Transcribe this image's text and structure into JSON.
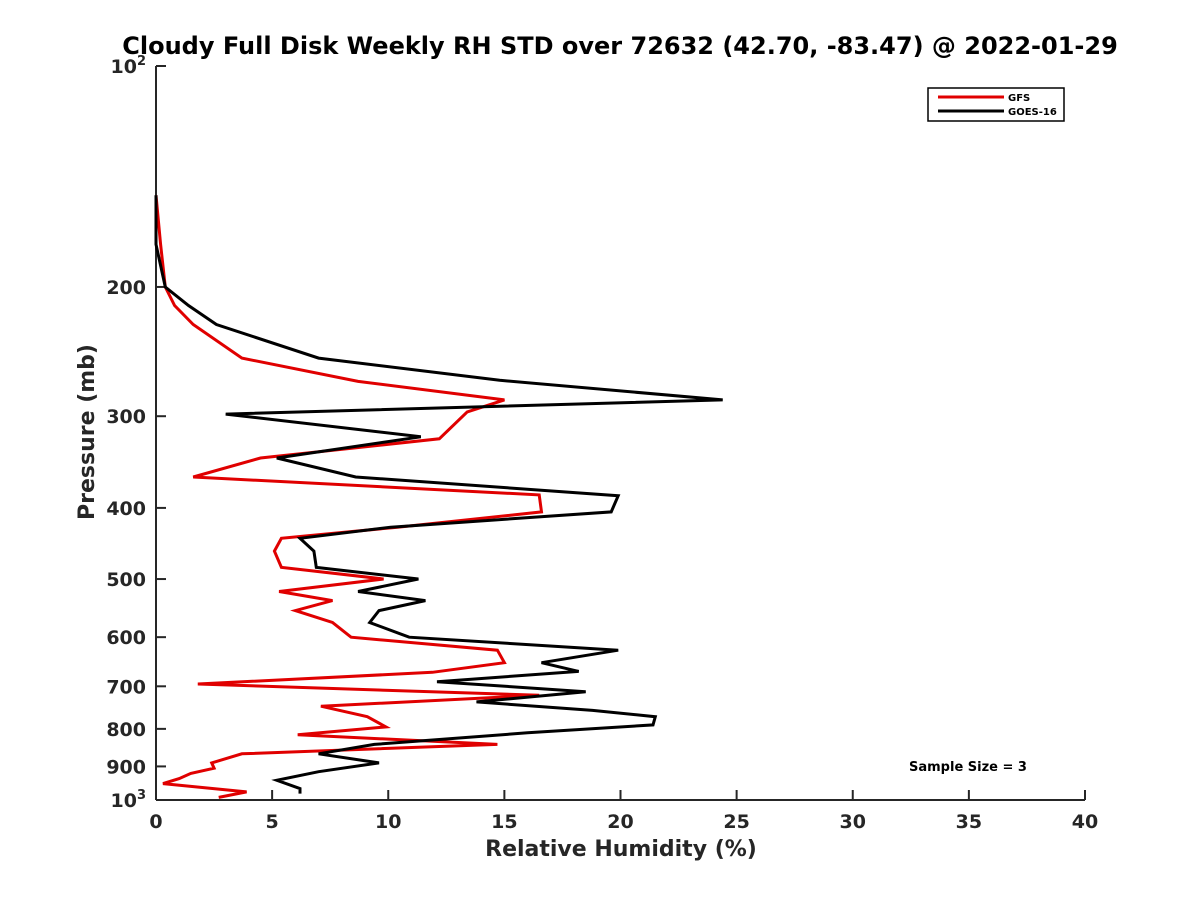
{
  "chart_data": {
    "type": "line",
    "title": "Cloudy Full Disk Weekly RH STD over 72632 (42.70, -83.47) @ 2022-01-29",
    "xlabel": "Relative Humidity (%)",
    "ylabel": "Pressure (mb)",
    "xlim": [
      0,
      40
    ],
    "ylim": [
      100,
      1000
    ],
    "yscale": "log",
    "y_reversed": true,
    "grid": false,
    "legend_position": "top-right",
    "x_ticks": [
      "0",
      "5",
      "10",
      "15",
      "20",
      "25",
      "30",
      "35",
      "40"
    ],
    "y_ticks": [
      {
        "value": 100,
        "base": "10",
        "exp": "2"
      },
      {
        "value": 200,
        "label": "200"
      },
      {
        "value": 300,
        "label": "300"
      },
      {
        "value": 400,
        "label": "400"
      },
      {
        "value": 500,
        "label": "500"
      },
      {
        "value": 600,
        "label": "600"
      },
      {
        "value": 700,
        "label": "700"
      },
      {
        "value": 800,
        "label": "800"
      },
      {
        "value": 900,
        "label": "900"
      },
      {
        "value": 1000,
        "base": "10",
        "exp": "3"
      }
    ],
    "series": [
      {
        "name": "GFS",
        "color": "#e00000",
        "points": [
          [
            0,
            150
          ],
          [
            0.2,
            175
          ],
          [
            0.4,
            200
          ],
          [
            0.8,
            212
          ],
          [
            1.6,
            225
          ],
          [
            3.7,
            250
          ],
          [
            8.7,
            269
          ],
          [
            15.0,
            285
          ],
          [
            13.4,
            296
          ],
          [
            12.2,
            322
          ],
          [
            4.5,
            342
          ],
          [
            1.6,
            363
          ],
          [
            16.5,
            384
          ],
          [
            16.6,
            405
          ],
          [
            10.4,
            425
          ],
          [
            5.4,
            440
          ],
          [
            5.1,
            458
          ],
          [
            5.4,
            482
          ],
          [
            9.8,
            500
          ],
          [
            5.3,
            520
          ],
          [
            7.6,
            535
          ],
          [
            6.0,
            552
          ],
          [
            7.6,
            573
          ],
          [
            8.4,
            600
          ],
          [
            14.7,
            625
          ],
          [
            15.0,
            650
          ],
          [
            11.9,
            670
          ],
          [
            1.8,
            695
          ],
          [
            16.5,
            720
          ],
          [
            7.1,
            745
          ],
          [
            9.1,
            770
          ],
          [
            9.9,
            795
          ],
          [
            6.1,
            815
          ],
          [
            14.7,
            840
          ],
          [
            3.7,
            865
          ],
          [
            2.4,
            890
          ],
          [
            2.5,
            905
          ],
          [
            1.5,
            920
          ],
          [
            1.0,
            935
          ],
          [
            0.3,
            950
          ],
          [
            3.9,
            975
          ],
          [
            2.7,
            992
          ]
        ]
      },
      {
        "name": "GOES-16",
        "color": "#000000",
        "points": [
          [
            0,
            150
          ],
          [
            0,
            175
          ],
          [
            0.4,
            200
          ],
          [
            1.4,
            212
          ],
          [
            2.6,
            225
          ],
          [
            7.0,
            250
          ],
          [
            14.8,
            268
          ],
          [
            24.4,
            285
          ],
          [
            3.0,
            298
          ],
          [
            11.4,
            320
          ],
          [
            5.2,
            342
          ],
          [
            8.6,
            363
          ],
          [
            19.9,
            385
          ],
          [
            19.6,
            405
          ],
          [
            10.1,
            425
          ],
          [
            6.2,
            440
          ],
          [
            6.8,
            458
          ],
          [
            6.9,
            482
          ],
          [
            11.3,
            500
          ],
          [
            8.7,
            520
          ],
          [
            11.6,
            535
          ],
          [
            9.6,
            552
          ],
          [
            9.2,
            573
          ],
          [
            10.9,
            600
          ],
          [
            19.9,
            625
          ],
          [
            16.6,
            650
          ],
          [
            18.2,
            668
          ],
          [
            12.1,
            690
          ],
          [
            18.5,
            712
          ],
          [
            13.8,
            735
          ],
          [
            18.8,
            755
          ],
          [
            21.5,
            770
          ],
          [
            21.4,
            790
          ],
          [
            16.0,
            810
          ],
          [
            9.4,
            840
          ],
          [
            7.0,
            865
          ],
          [
            9.6,
            890
          ],
          [
            7.0,
            915
          ],
          [
            5.2,
            940
          ],
          [
            6.2,
            965
          ],
          [
            6.2,
            980
          ]
        ]
      }
    ],
    "annotations": [
      "Sample Size = 3"
    ]
  }
}
